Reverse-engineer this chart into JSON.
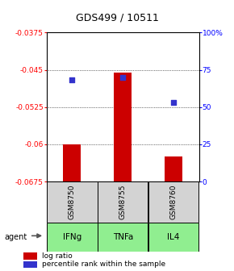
{
  "title": "GDS499 / 10511",
  "samples": [
    "GSM8750",
    "GSM8755",
    "GSM8760"
  ],
  "agents": [
    "IFNg",
    "TNFa",
    "IL4"
  ],
  "log_ratios": [
    -0.06,
    -0.0455,
    -0.0625
  ],
  "percentile_ranks": [
    68,
    70,
    53
  ],
  "bar_color": "#cc0000",
  "dot_color": "#3333cc",
  "ylim_left": [
    -0.0675,
    -0.0375
  ],
  "ylim_right": [
    0,
    100
  ],
  "yticks_left": [
    -0.0675,
    -0.06,
    -0.0525,
    -0.045,
    -0.0375
  ],
  "ytick_labels_left": [
    "-0.0675",
    "-0.06",
    "-0.0525",
    "-0.045",
    "-0.0375"
  ],
  "yticks_right": [
    0,
    25,
    50,
    75,
    100
  ],
  "ytick_labels_right": [
    "0",
    "25",
    "50",
    "75",
    "100%"
  ],
  "sample_bg_color": "#d3d3d3",
  "agent_bg_color": "#90ee90",
  "bar_zero": -0.0675,
  "legend_log_label": "log ratio",
  "legend_pct_label": "percentile rank within the sample",
  "agent_label": "agent"
}
